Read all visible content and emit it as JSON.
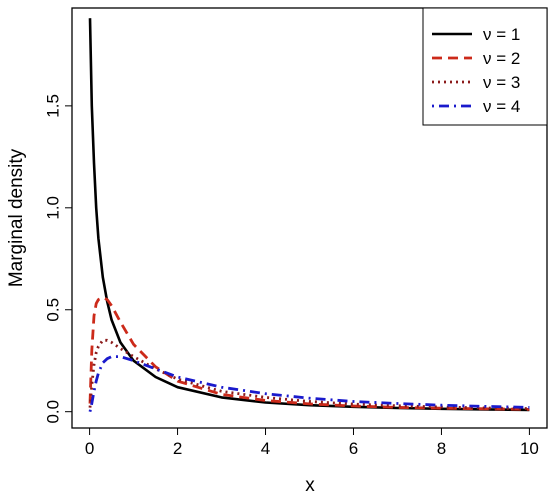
{
  "chart_data": {
    "type": "line",
    "title": "",
    "xlabel": "x",
    "ylabel": "Marginal density",
    "xlim": [
      -0.4,
      10.4
    ],
    "ylim": [
      -0.08,
      1.98
    ],
    "x_ticks": [
      0,
      2,
      4,
      6,
      8,
      10
    ],
    "y_ticks": [
      0.0,
      0.5,
      1.0,
      1.5
    ],
    "x_tick_labels": [
      "0",
      "2",
      "4",
      "6",
      "8",
      "10"
    ],
    "y_tick_labels": [
      "0.0",
      "0.5",
      "1.0",
      "1.5"
    ],
    "grid": false,
    "legend_position": "top-right",
    "series": [
      {
        "name": "ν = 1",
        "color": "#000000",
        "line_style": "solid",
        "x": [
          0.01,
          0.05,
          0.1,
          0.15,
          0.2,
          0.3,
          0.4,
          0.5,
          0.7,
          1.0,
          1.5,
          2.0,
          3.0,
          4.0,
          5.0,
          6.0,
          7.0,
          8.0,
          9.0,
          10.0
        ],
        "y": [
          1.93,
          1.5,
          1.22,
          1.0,
          0.85,
          0.66,
          0.54,
          0.45,
          0.34,
          0.25,
          0.17,
          0.12,
          0.07,
          0.045,
          0.032,
          0.024,
          0.018,
          0.014,
          0.011,
          0.009
        ]
      },
      {
        "name": "ν = 2",
        "color": "#cc2a1a",
        "line_style": "dashed",
        "x": [
          0.01,
          0.05,
          0.1,
          0.15,
          0.2,
          0.3,
          0.4,
          0.5,
          0.7,
          1.0,
          1.5,
          2.0,
          3.0,
          4.0,
          5.0,
          6.0,
          7.0,
          8.0,
          9.0,
          10.0
        ],
        "y": [
          0.04,
          0.3,
          0.47,
          0.53,
          0.55,
          0.56,
          0.55,
          0.52,
          0.44,
          0.33,
          0.22,
          0.15,
          0.085,
          0.055,
          0.038,
          0.028,
          0.021,
          0.017,
          0.014,
          0.011
        ]
      },
      {
        "name": "ν = 3",
        "color": "#8b1a1a",
        "line_style": "dotted",
        "x": [
          0.01,
          0.05,
          0.1,
          0.15,
          0.2,
          0.3,
          0.4,
          0.5,
          0.7,
          1.0,
          1.5,
          2.0,
          3.0,
          4.0,
          5.0,
          6.0,
          7.0,
          8.0,
          9.0,
          10.0
        ],
        "y": [
          0.02,
          0.13,
          0.23,
          0.29,
          0.32,
          0.35,
          0.35,
          0.34,
          0.31,
          0.27,
          0.21,
          0.16,
          0.1,
          0.07,
          0.05,
          0.037,
          0.029,
          0.023,
          0.018,
          0.015
        ]
      },
      {
        "name": "ν = 4",
        "color": "#1a1acc",
        "line_style": "dotdash",
        "x": [
          0.01,
          0.05,
          0.1,
          0.15,
          0.2,
          0.3,
          0.4,
          0.5,
          0.7,
          1.0,
          1.5,
          2.0,
          3.0,
          4.0,
          5.0,
          6.0,
          7.0,
          8.0,
          9.0,
          10.0
        ],
        "y": [
          0.0,
          0.04,
          0.1,
          0.15,
          0.19,
          0.24,
          0.26,
          0.27,
          0.27,
          0.25,
          0.21,
          0.17,
          0.12,
          0.088,
          0.066,
          0.05,
          0.04,
          0.032,
          0.026,
          0.021
        ]
      }
    ]
  }
}
